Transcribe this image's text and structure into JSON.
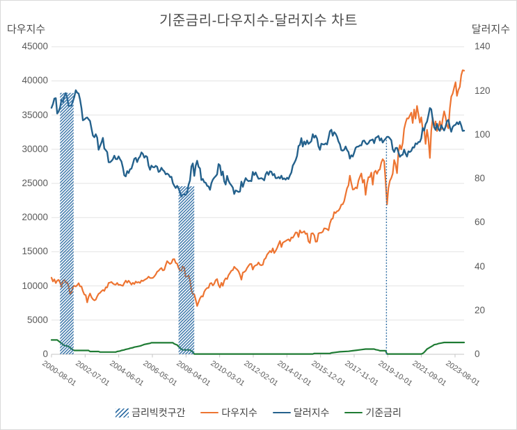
{
  "title": "기준금리-다우지수-달러지수 차트",
  "legend": [
    {
      "label": "금리빅컷구간",
      "swatch": "hatch",
      "color": "#2E6DA4"
    },
    {
      "label": "다우지수",
      "swatch": "line",
      "color": "#ED7431"
    },
    {
      "label": "달러지수",
      "swatch": "line",
      "color": "#24618C"
    },
    {
      "label": "기준금리",
      "swatch": "line",
      "color": "#1E7B33"
    }
  ],
  "chart_data": {
    "type": "line",
    "title": "기준금리-다우지수-달러지수 차트",
    "grid": "horizontal",
    "legend_position": "bottom",
    "left_axis": {
      "label": "다우지수",
      "min": 0,
      "max": 45000,
      "step": 5000,
      "ticks": [
        "45000",
        "40000",
        "35000",
        "30000",
        "25000",
        "20000",
        "15000",
        "10000",
        "5000",
        "0"
      ]
    },
    "right_axis": {
      "label": "달러지수",
      "min": 0,
      "max": 140,
      "step": 20,
      "ticks": [
        "140",
        "120",
        "100",
        "80",
        "60",
        "40",
        "20",
        "0"
      ]
    },
    "x_axis": {
      "labels": [
        "2000-08-01",
        "2002-07-01",
        "2004-06-01",
        "2006-05-01",
        "2008-04-01",
        "2010-03-01",
        "2012-02-01",
        "2014-01-01",
        "2015-12-01",
        "2017-11-01",
        "2019-10-01",
        "2021-09-01",
        "2023-08-01"
      ],
      "months_between_labels": 23,
      "start_month_index": 0,
      "total_months": 289
    },
    "bands": [
      {
        "name": "금리빅컷구간",
        "from_month": 6,
        "to_month": 15.5,
        "top_value_right_axis": 119
      },
      {
        "name": "금리빅컷구간",
        "from_month": 89,
        "to_month": 100,
        "top_value_right_axis": 76.5
      }
    ],
    "event_line": {
      "name": "금리빅컷구간",
      "month": 234.6,
      "top_value_right_axis": 98.5,
      "style": "dashed"
    },
    "series": [
      {
        "name": "다우지수",
        "axis": "left",
        "color": "#ED7431",
        "width": 2.2,
        "start_month": 0,
        "values_monthly": [
          11215,
          10651,
          10971,
          10414,
          10788,
          10887,
          10495,
          9879,
          10735,
          10912,
          10502,
          10523,
          9950,
          8848,
          9075,
          9852,
          10022,
          9920,
          10106,
          10404,
          9946,
          9925,
          9243,
          8737,
          8664,
          7592,
          8397,
          8896,
          8342,
          8054,
          7891,
          7992,
          8480,
          8850,
          8985,
          9234,
          9416,
          9275,
          9801,
          9782,
          10454,
          10488,
          10584,
          10358,
          10226,
          10188,
          10435,
          10140,
          10174,
          10080,
          10027,
          10428,
          10783,
          10490,
          10766,
          10504,
          10193,
          10467,
          10275,
          10641,
          10482,
          10569,
          10440,
          10806,
          10718,
          10865,
          10993,
          11109,
          11367,
          11168,
          11150,
          11186,
          11381,
          11679,
          12080,
          12222,
          12463,
          12622,
          12269,
          12354,
          13063,
          13628,
          13409,
          13212,
          13358,
          13896,
          13930,
          13372,
          13265,
          12650,
          12266,
          12263,
          12820,
          12638,
          11350,
          11378,
          11544,
          10851,
          9325,
          8829,
          8776,
          8001,
          7063,
          7609,
          8168,
          8500,
          8447,
          9172,
          9496,
          9712,
          9713,
          10345,
          10428,
          10067,
          10325,
          10857,
          11009,
          10137,
          9774,
          10466,
          10015,
          10788,
          11118,
          11006,
          11578,
          11892,
          12226,
          12320,
          12811,
          12570,
          12414,
          12143,
          11614,
          10913,
          11955,
          12046,
          12218,
          12633,
          12952,
          13212,
          13214,
          12393,
          12880,
          13009,
          13091,
          13437,
          13096,
          13026,
          13104,
          13861,
          14054,
          14579,
          14840,
          15116,
          14910,
          15500,
          14810,
          15130,
          15546,
          16086,
          16577,
          15699,
          16322,
          16458,
          16581,
          16717,
          16827,
          16563,
          17098,
          17043,
          17391,
          17828,
          17823,
          17165,
          18133,
          17776,
          17841,
          18011,
          17620,
          17690,
          16528,
          16285,
          17664,
          17720,
          17425,
          16466,
          16517,
          17685,
          17774,
          17787,
          17930,
          18432,
          18401,
          18308,
          18142,
          19124,
          19763,
          19864,
          20812,
          20663,
          20941,
          21009,
          21350,
          21891,
          21948,
          22405,
          23377,
          24272,
          24719,
          26149,
          25029,
          24103,
          24163,
          24416,
          24271,
          25415,
          25965,
          26458,
          25116,
          25538,
          23327,
          25000,
          25916,
          25929,
          26593,
          24815,
          26600,
          26864,
          26403,
          26917,
          27046,
          28051,
          28538,
          28256,
          25409,
          21917,
          24346,
          25383,
          25813,
          26428,
          28430,
          27782,
          26502,
          29639,
          30606,
          29983,
          30932,
          32981,
          33875,
          34529,
          34503,
          34935,
          35361,
          33844,
          35820,
          34484,
          36338,
          35132,
          33893,
          34678,
          32977,
          32990,
          30775,
          32845,
          31510,
          28726,
          32733,
          34590,
          33147,
          34086,
          32657,
          33274,
          34098,
          32908,
          34408,
          35559,
          34722,
          33508,
          33052,
          35951,
          37690,
          38150,
          38996,
          39807,
          37816,
          38686,
          39119,
          40843,
          41563,
          41500
        ]
      },
      {
        "name": "달러지수",
        "axis": "right",
        "color": "#24618C",
        "width": 2.4,
        "start_month": 0,
        "values_monthly": [
          112.2,
          113.9,
          116.4,
          116.6,
          109.6,
          110.6,
          112.4,
          115.8,
          114.9,
          117.5,
          118.9,
          116.6,
          113.1,
          113.1,
          113.3,
          115.2,
          117.2,
          120.2,
          119.1,
          118.7,
          116.0,
          112.0,
          106.5,
          106.9,
          107.5,
          107.8,
          107.0,
          106.2,
          102.7,
          99.6,
          98.8,
          100.2,
          98.6,
          93.1,
          94.8,
          96.4,
          98.5,
          93.7,
          92.9,
          92.1,
          87.4,
          87.4,
          88.0,
          88.8,
          90.4,
          88.9,
          88.8,
          90.1,
          88.8,
          87.8,
          85.0,
          81.5,
          81.0,
          83.4,
          82.5,
          84.2,
          84.5,
          86.7,
          89.0,
          89.4,
          87.5,
          89.2,
          90.0,
          91.9,
          91.2,
          89.5,
          90.3,
          89.8,
          85.9,
          84.0,
          85.9,
          85.2,
          85.1,
          85.8,
          85.4,
          83.0,
          83.4,
          84.9,
          83.9,
          83.3,
          81.9,
          82.3,
          81.8,
          80.7,
          80.8,
          78.0,
          76.7,
          75.7,
          76.7,
          75.5,
          73.7,
          71.8,
          72.7,
          72.9,
          72.5,
          73.4,
          77.2,
          79.1,
          85.5,
          86.9,
          81.2,
          85.8,
          88.1,
          85.4,
          84.6,
          79.3,
          79.8,
          78.3,
          78.1,
          76.7,
          76.4,
          74.9,
          77.9,
          79.5,
          80.4,
          81.1,
          81.9,
          86.6,
          86.0,
          81.5,
          83.2,
          78.7,
          77.3,
          81.2,
          79.0,
          77.7,
          76.9,
          75.9,
          73.0,
          74.6,
          74.3,
          73.9,
          74.1,
          78.6,
          76.2,
          78.4,
          80.2,
          79.3,
          78.8,
          79.0,
          78.8,
          83.0,
          81.6,
          82.8,
          81.2,
          79.9,
          80.0,
          80.2,
          79.8,
          79.2,
          81.9,
          83.0,
          81.7,
          83.3,
          83.1,
          81.5,
          82.1,
          80.2,
          80.2,
          80.7,
          80.0,
          81.3,
          79.7,
          80.1,
          79.5,
          80.4,
          79.8,
          81.5,
          82.7,
          85.9,
          87.0,
          88.4,
          90.3,
          94.8,
          95.3,
          98.4,
          94.6,
          96.9,
          95.5,
          97.3,
          95.8,
          96.4,
          97.0,
          100.2,
          98.6,
          99.6,
          98.2,
          94.6,
          93.1,
          95.9,
          95.6,
          95.5,
          96.0,
          95.5,
          98.4,
          101.5,
          102.2,
          99.5,
          101.1,
          100.4,
          99.0,
          96.9,
          95.6,
          92.9,
          92.7,
          93.1,
          94.6,
          93.0,
          92.1,
          89.1,
          90.6,
          90.0,
          91.8,
          94.0,
          94.5,
          94.6,
          95.1,
          95.1,
          97.1,
          97.3,
          96.2,
          95.6,
          96.1,
          97.3,
          97.5,
          97.8,
          96.1,
          98.5,
          98.9,
          99.4,
          97.3,
          98.3,
          96.4,
          97.4,
          98.1,
          99.0,
          99.0,
          98.3,
          97.4,
          93.3,
          92.1,
          93.9,
          94.0,
          91.9,
          89.9,
          90.6,
          90.9,
          93.2,
          91.3,
          90.0,
          92.4,
          92.1,
          92.6,
          94.2,
          94.1,
          96.0,
          95.7,
          96.6,
          96.7,
          98.3,
          103.0,
          101.8,
          104.7,
          105.9,
          108.8,
          112.1,
          111.5,
          106.7,
          103.5,
          102.1,
          104.9,
          102.5,
          101.7,
          104.3,
          102.9,
          101.9,
          103.6,
          106.2,
          106.7,
          103.5,
          101.3,
          103.5,
          104.2,
          104.5,
          105.6,
          104.7,
          105.9,
          104.1,
          101.7,
          101.8
        ]
      },
      {
        "name": "기준금리",
        "axis": "right",
        "color": "#1E7B33",
        "width": 2.2,
        "points": [
          [
            0,
            6.5
          ],
          [
            4,
            6.5
          ],
          [
            5,
            6.0
          ],
          [
            6,
            5.5
          ],
          [
            7,
            5.0
          ],
          [
            8,
            4.5
          ],
          [
            9,
            4.0
          ],
          [
            11,
            3.75
          ],
          [
            12,
            3.5
          ],
          [
            13,
            3.0
          ],
          [
            14,
            2.5
          ],
          [
            15,
            2.0
          ],
          [
            16,
            1.75
          ],
          [
            26,
            1.75
          ],
          [
            27,
            1.25
          ],
          [
            33,
            1.25
          ],
          [
            34,
            1.0
          ],
          [
            45,
            1.0
          ],
          [
            46,
            1.25
          ],
          [
            48,
            1.5
          ],
          [
            49,
            1.75
          ],
          [
            51,
            2.0
          ],
          [
            52,
            2.25
          ],
          [
            54,
            2.5
          ],
          [
            55,
            2.75
          ],
          [
            57,
            3.0
          ],
          [
            58,
            3.25
          ],
          [
            60,
            3.5
          ],
          [
            62,
            3.75
          ],
          [
            63,
            4.0
          ],
          [
            64,
            4.25
          ],
          [
            65,
            4.5
          ],
          [
            67,
            4.75
          ],
          [
            69,
            5.0
          ],
          [
            70,
            5.25
          ],
          [
            85,
            5.25
          ],
          [
            86,
            4.75
          ],
          [
            88,
            4.25
          ],
          [
            89,
            3.5
          ],
          [
            90,
            3.0
          ],
          [
            91,
            2.25
          ],
          [
            92,
            2.0
          ],
          [
            97,
            2.0
          ],
          [
            98,
            1.5
          ],
          [
            99,
            1.0
          ],
          [
            100,
            0.125
          ],
          [
            183,
            0.125
          ],
          [
            184,
            0.375
          ],
          [
            195,
            0.375
          ],
          [
            196,
            0.625
          ],
          [
            199,
            0.875
          ],
          [
            202,
            1.125
          ],
          [
            208,
            1.375
          ],
          [
            211,
            1.625
          ],
          [
            214,
            1.875
          ],
          [
            217,
            2.125
          ],
          [
            220,
            2.375
          ],
          [
            226,
            2.375
          ],
          [
            227,
            2.125
          ],
          [
            229,
            1.875
          ],
          [
            230,
            1.625
          ],
          [
            234,
            1.625
          ],
          [
            235,
            0.125
          ],
          [
            259,
            0.125
          ],
          [
            260,
            0.375
          ],
          [
            261,
            0.875
          ],
          [
            262,
            1.625
          ],
          [
            263,
            2.375
          ],
          [
            265,
            3.125
          ],
          [
            267,
            3.875
          ],
          [
            268,
            4.375
          ],
          [
            270,
            4.625
          ],
          [
            271,
            4.875
          ],
          [
            273,
            5.125
          ],
          [
            275,
            5.375
          ],
          [
            289,
            5.375
          ]
        ]
      }
    ]
  }
}
